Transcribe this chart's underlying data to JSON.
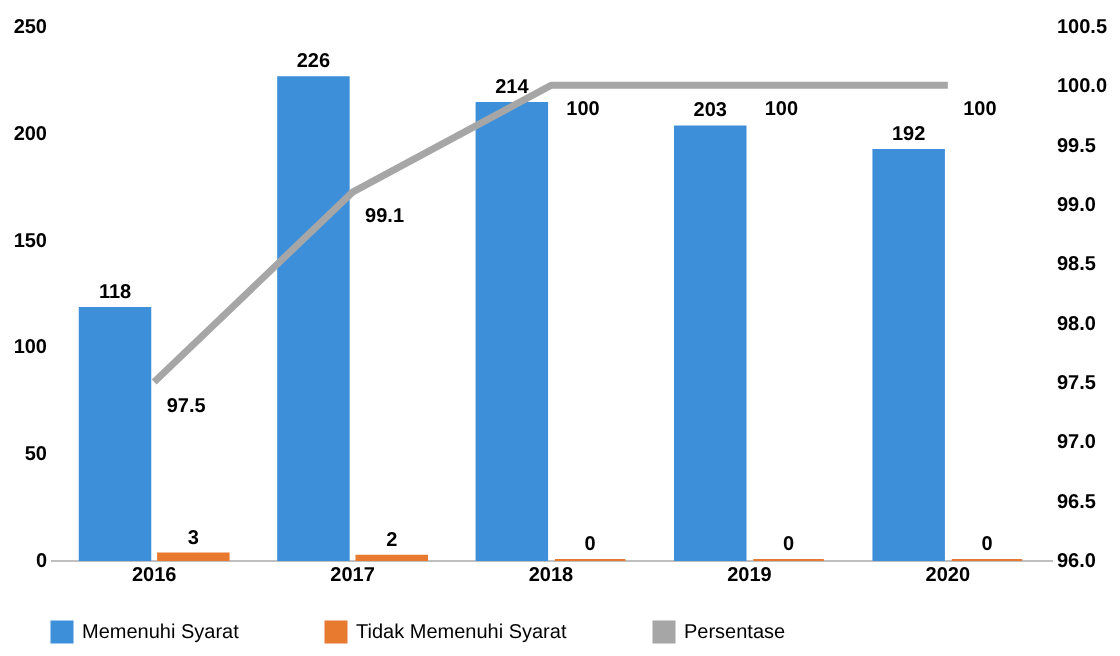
{
  "chart_data": {
    "type": "bar",
    "categories": [
      "2016",
      "2017",
      "2018",
      "2019",
      "2020"
    ],
    "series": [
      {
        "name": "Memenuhi Syarat",
        "color": "#3d8fd9",
        "values": [
          118,
          226,
          214,
          203,
          192
        ]
      },
      {
        "name": "Tidak Memenuhi Syarat",
        "color": "#e87a30",
        "values": [
          3,
          2,
          0,
          0,
          0
        ]
      },
      {
        "name": "Persentase",
        "type": "line",
        "axis": "y2",
        "color": "#a6a6a6",
        "values": [
          97.5,
          99.1,
          100,
          100,
          100
        ]
      }
    ],
    "ylim": [
      0,
      250
    ],
    "yticks": [
      0,
      50,
      100,
      150,
      200,
      250
    ],
    "y2lim": [
      96,
      100.5
    ],
    "y2ticks": [
      {
        "value": 96,
        "label": "96.0"
      },
      {
        "value": 96.5,
        "label": "96.5"
      },
      {
        "value": 97,
        "label": "97.0"
      },
      {
        "value": 97.5,
        "label": "97.5"
      },
      {
        "value": 98,
        "label": "98.0"
      },
      {
        "value": 98.5,
        "label": "98.5"
      },
      {
        "value": 99,
        "label": "99.0"
      },
      {
        "value": 99.5,
        "label": "99.5"
      },
      {
        "value": 100,
        "label": "100.0"
      },
      {
        "value": 100.5,
        "label": "100.5"
      }
    ],
    "data_labels": true,
    "legend": "bottom",
    "grid": false
  }
}
